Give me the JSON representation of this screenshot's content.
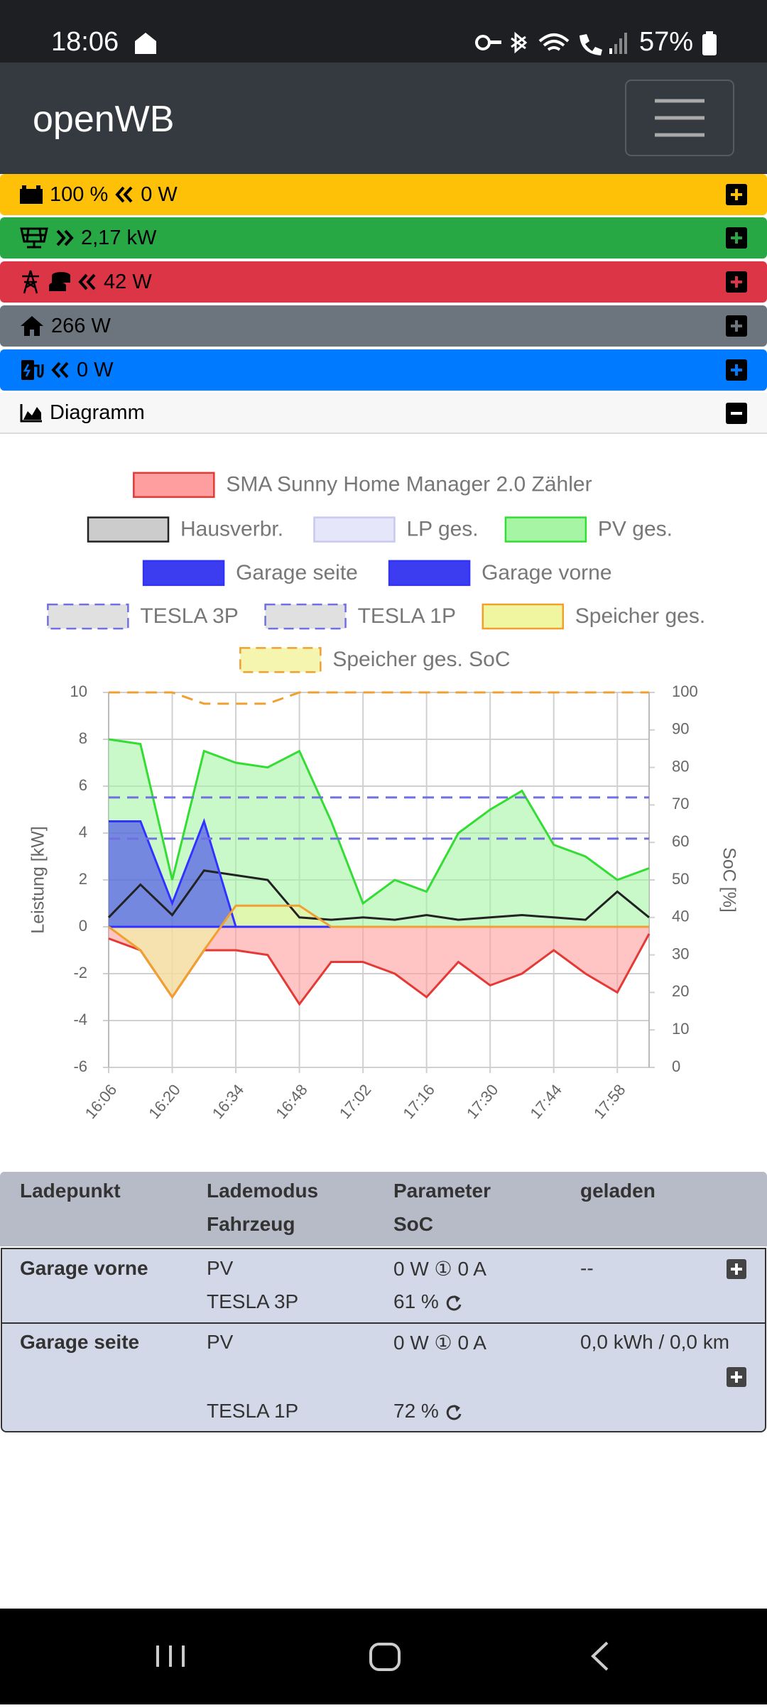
{
  "status_bar": {
    "time": "18:06",
    "battery": "57%"
  },
  "navbar": {
    "brand": "openWB"
  },
  "summary": {
    "battery": {
      "soc": "100 %",
      "power": "0 W"
    },
    "pv": {
      "power": "2,17 kW"
    },
    "grid": {
      "power": "42 W"
    },
    "house": {
      "power": "266 W"
    },
    "charge": {
      "power": "0 W"
    },
    "diagram": {
      "title": "Diagramm"
    }
  },
  "chart_data": {
    "type": "line",
    "x": [
      "16:06",
      "16:13",
      "16:20",
      "16:27",
      "16:34",
      "16:41",
      "16:48",
      "16:55",
      "17:02",
      "17:09",
      "17:16",
      "17:23",
      "17:30",
      "17:37",
      "17:44",
      "17:51",
      "17:58",
      "18:05"
    ],
    "xticks": [
      "16:06",
      "16:20",
      "16:34",
      "16:48",
      "17:02",
      "17:16",
      "17:30",
      "17:44",
      "17:58"
    ],
    "y_label": "Leistung [kW]",
    "y2_label": "SoC [%]",
    "ylim": [
      -6,
      10
    ],
    "yticks": [
      -6,
      -4,
      -2,
      0,
      2,
      4,
      6,
      8,
      10
    ],
    "y2lim": [
      0,
      100
    ],
    "y2ticks": [
      0,
      10,
      20,
      30,
      40,
      50,
      60,
      70,
      80,
      90,
      100
    ],
    "grid": true,
    "series": [
      {
        "name": "SMA Sunny Home Manager 2.0 Zähler",
        "color": "#e53935",
        "fill": "#ff9e9e",
        "area": true,
        "dashed": false,
        "values": [
          -0.5,
          -1.0,
          -3.0,
          -1.0,
          -1.0,
          -1.2,
          -3.3,
          -1.5,
          -1.5,
          -2.0,
          -3.0,
          -1.5,
          -2.5,
          -2.0,
          -1.0,
          -2.0,
          -2.8,
          -0.3
        ]
      },
      {
        "name": "Hausverbr.",
        "color": "#222222",
        "fill": "#cccccc",
        "area": false,
        "dashed": false,
        "values": [
          0.4,
          1.8,
          0.5,
          2.4,
          2.2,
          2.0,
          0.4,
          0.3,
          0.4,
          0.3,
          0.5,
          0.3,
          0.4,
          0.5,
          0.4,
          0.3,
          1.5,
          0.4
        ]
      },
      {
        "name": "LP ges.",
        "color": "#c8c8f0",
        "fill": "#e6e6fa",
        "area": false,
        "dashed": false,
        "values": [
          4.5,
          4.5,
          1.0,
          4.5,
          0,
          0,
          0,
          0,
          0,
          0,
          0,
          0,
          0,
          0,
          0,
          0,
          0,
          0
        ]
      },
      {
        "name": "PV ges.",
        "color": "#33dd33",
        "fill": "#a5f5a5",
        "area": true,
        "dashed": false,
        "values": [
          8.0,
          7.8,
          2.0,
          7.5,
          7.0,
          6.8,
          7.5,
          4.5,
          1.0,
          2.0,
          1.5,
          4.0,
          5.0,
          5.8,
          3.5,
          3.0,
          2.0,
          2.5
        ]
      },
      {
        "name": "Garage seite",
        "color": "#3232ff",
        "fill": "#3c3cf0",
        "area": true,
        "dashed": false,
        "values": [
          4.5,
          4.5,
          1.0,
          4.5,
          0,
          0,
          0,
          0,
          0,
          0,
          0,
          0,
          0,
          0,
          0,
          0,
          0,
          0
        ]
      },
      {
        "name": "Garage vorne",
        "color": "#3232ff",
        "fill": "#3c3cf0",
        "area": false,
        "dashed": false,
        "values": [
          0,
          0,
          0,
          0,
          0,
          0,
          0,
          0,
          0,
          0,
          0,
          0,
          0,
          0,
          0,
          0,
          0,
          0
        ]
      },
      {
        "name": "TESLA 3P",
        "color": "#7070e0",
        "fill": "#e0e0e0",
        "area": false,
        "dashed": true,
        "axis": "y2",
        "values": [
          61,
          61,
          61,
          61,
          61,
          61,
          61,
          61,
          61,
          61,
          61,
          61,
          61,
          61,
          61,
          61,
          61,
          61
        ]
      },
      {
        "name": "TESLA 1P",
        "color": "#7070e0",
        "fill": "#e0e0e0",
        "area": false,
        "dashed": true,
        "axis": "y2",
        "values": [
          72,
          72,
          72,
          72,
          72,
          72,
          72,
          72,
          72,
          72,
          72,
          72,
          72,
          72,
          72,
          72,
          72,
          72
        ]
      },
      {
        "name": "Speicher ges.",
        "color": "#f0a030",
        "fill": "#f0f5a0",
        "area": true,
        "dashed": false,
        "values": [
          0,
          -1.0,
          -3.0,
          -1.0,
          0.9,
          0.9,
          0.9,
          0,
          0,
          0,
          0,
          0,
          0,
          0,
          0,
          0,
          0,
          0
        ]
      },
      {
        "name": "Speicher ges. SoC",
        "color": "#f0a030",
        "fill": "#f5f5b0",
        "area": false,
        "dashed": true,
        "axis": "y2",
        "values": [
          100,
          100,
          100,
          97,
          97,
          97,
          100,
          100,
          100,
          100,
          100,
          100,
          100,
          100,
          100,
          100,
          100,
          100
        ]
      }
    ]
  },
  "table": {
    "header": [
      [
        "Ladepunkt"
      ],
      [
        "Lademodus",
        "Fahrzeug"
      ],
      [
        "Parameter",
        "SoC"
      ],
      [
        "geladen"
      ]
    ],
    "rows": [
      {
        "name": "Garage vorne",
        "mode": "PV",
        "vehicle": "TESLA 3P",
        "parameter": "0 W ① 0 A",
        "soc": "61 %",
        "charged": "--"
      },
      {
        "name": "Garage seite",
        "mode": "PV",
        "vehicle": "TESLA 1P",
        "parameter": "0 W ① 0 A",
        "soc": "72 %",
        "charged": "0,0 kWh / 0,0 km"
      }
    ]
  }
}
